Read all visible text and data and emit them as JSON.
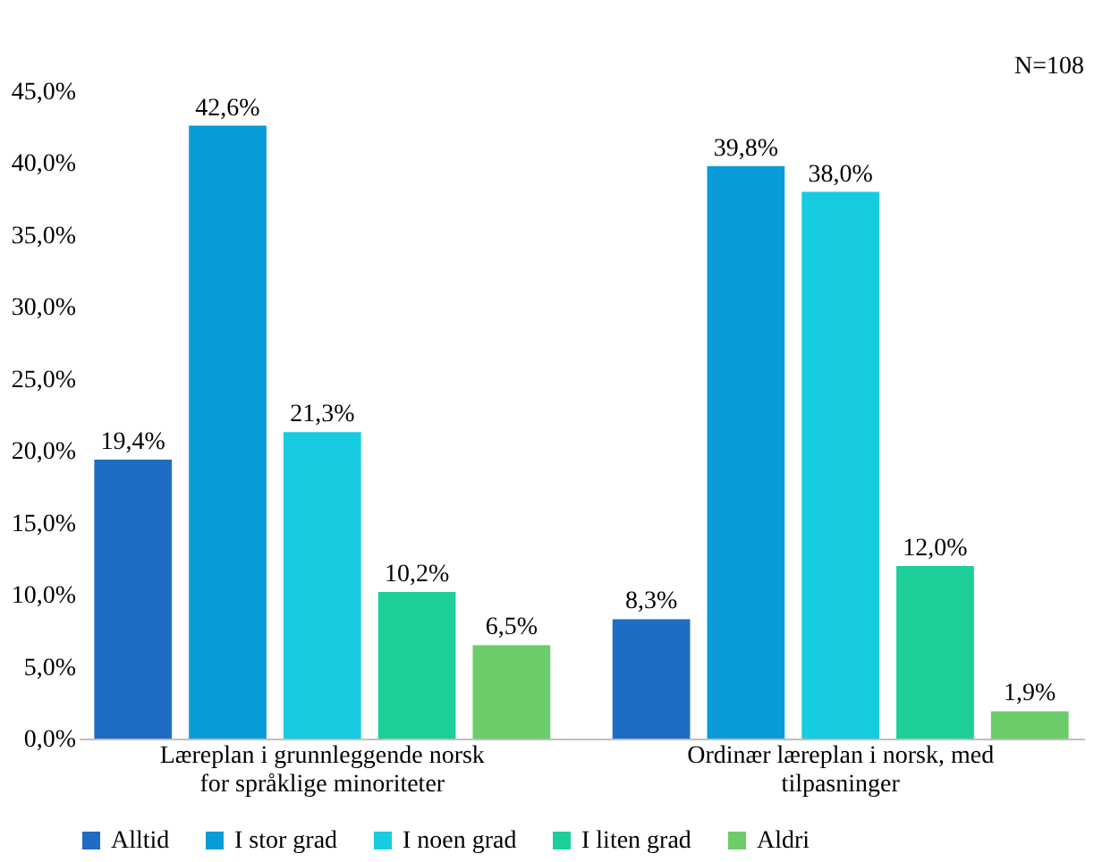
{
  "chart_data": {
    "type": "bar",
    "categories": [
      "Læreplan i grunnleggende norsk for språklige minoriteter",
      "Ordinær læreplan i norsk, med tilpasninger"
    ],
    "series": [
      {
        "name": "Alltid",
        "color": "#1f6cc4",
        "values": [
          19.4,
          8.3
        ],
        "value_labels": [
          "19,4%",
          "8,3%"
        ]
      },
      {
        "name": "I stor grad",
        "color": "#0a9bd9",
        "values": [
          42.6,
          39.8
        ],
        "value_labels": [
          "42,6%",
          "39,8%"
        ]
      },
      {
        "name": "I noen grad",
        "color": "#17cbe0",
        "values": [
          21.3,
          38.0
        ],
        "value_labels": [
          "21,3%",
          "38,0%"
        ]
      },
      {
        "name": "I liten grad",
        "color": "#1ccf98",
        "values": [
          10.2,
          12.0
        ],
        "value_labels": [
          "10,2%",
          "12,0%"
        ]
      },
      {
        "name": "Aldri",
        "color": "#6dcc6a",
        "values": [
          6.5,
          1.9
        ],
        "value_labels": [
          "6,5%",
          "1,9%"
        ]
      }
    ],
    "ylim": [
      0,
      45
    ],
    "yticks": [
      {
        "value": 0,
        "label": "0,0%"
      },
      {
        "value": 5,
        "label": "5,0%"
      },
      {
        "value": 10,
        "label": "10,0%"
      },
      {
        "value": 15,
        "label": "15,0%"
      },
      {
        "value": 20,
        "label": "20,0%"
      },
      {
        "value": 25,
        "label": "25,0%"
      },
      {
        "value": 30,
        "label": "30,0%"
      },
      {
        "value": 35,
        "label": "35,0%"
      },
      {
        "value": 40,
        "label": "40,0%"
      },
      {
        "value": 45,
        "label": "45,0%"
      }
    ],
    "annotations": [
      "N=108"
    ],
    "grid": false,
    "legend": "bottom"
  }
}
